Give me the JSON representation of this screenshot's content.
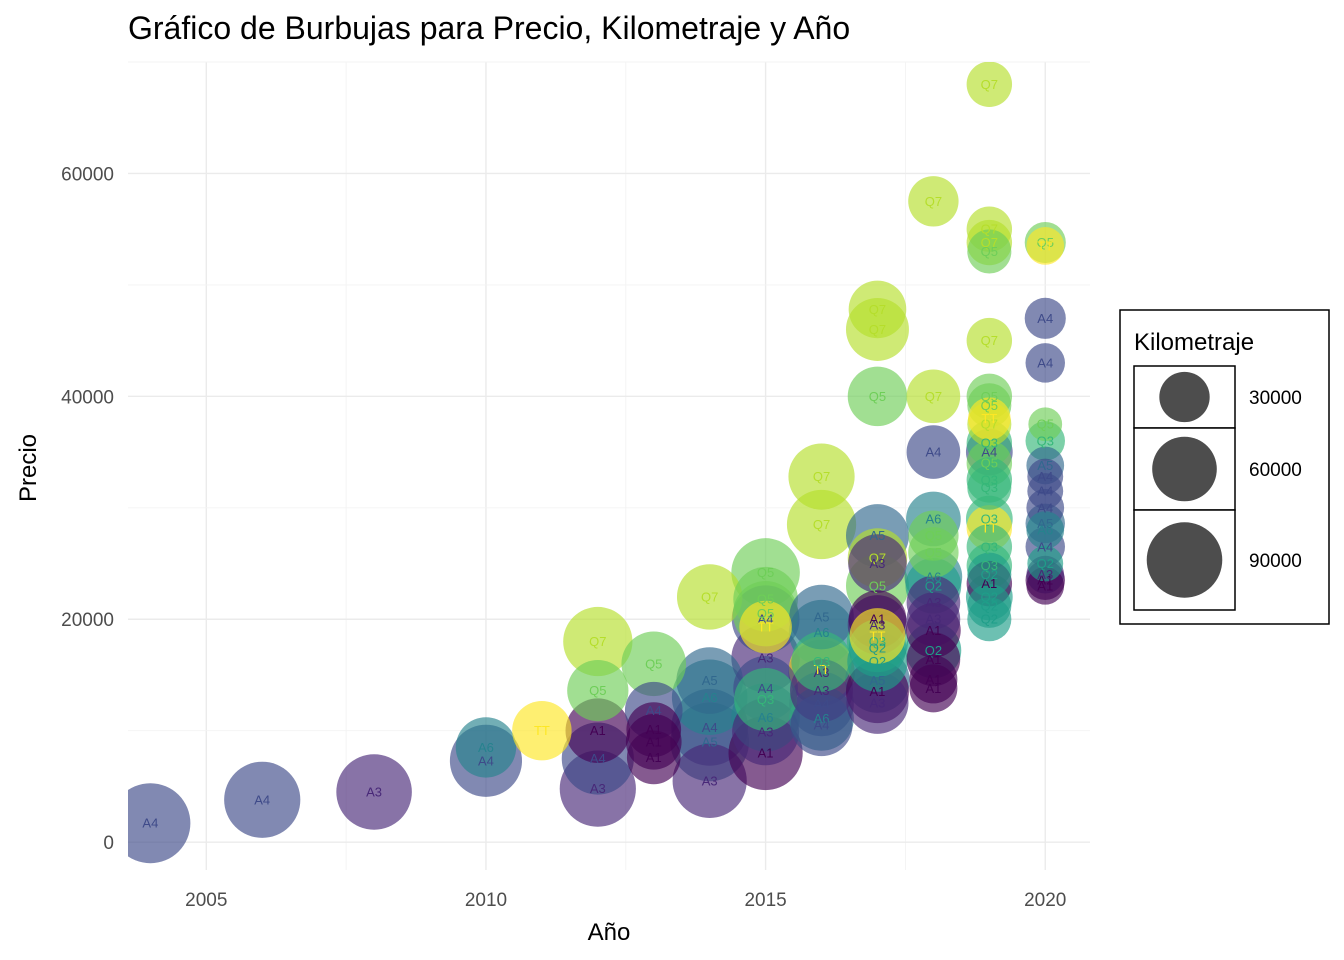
{
  "chart_data": {
    "type": "scatter",
    "subtype": "bubble",
    "title": "Gráfico de Burbujas para Precio, Kilometraje y Año",
    "xlabel": "Año",
    "ylabel": "Precio",
    "xlim": [
      2003.6,
      2020.8
    ],
    "ylim": [
      -2500,
      70000
    ],
    "x_ticks": [
      2005,
      2010,
      2015,
      2020
    ],
    "x_tick_labels": [
      "2005",
      "2010",
      "2015",
      "2020"
    ],
    "y_ticks": [
      0,
      20000,
      40000,
      60000
    ],
    "y_tick_labels": [
      "0",
      "20000",
      "40000",
      "60000"
    ],
    "grid": true,
    "size_variable": "Kilometraje",
    "legend": {
      "title": "Kilometraje",
      "placement": "right",
      "entries": [
        {
          "label": "30000",
          "value": 30000
        },
        {
          "label": "60000",
          "value": 60000
        },
        {
          "label": "90000",
          "value": 90000
        }
      ]
    },
    "model_colors": {
      "A1": "#440154",
      "A3": "#482878",
      "A4": "#3e4a89",
      "A5": "#31688e",
      "A6": "#26828e",
      "Q2": "#1f9e89",
      "Q3": "#35b779",
      "Q5": "#6ece58",
      "Q7": "#b5de2b",
      "TT": "#fde725"
    },
    "points": [
      {
        "x": 2004,
        "y": 1700,
        "km": 104000,
        "model": "A4"
      },
      {
        "x": 2006,
        "y": 3800,
        "km": 92000,
        "model": "A4"
      },
      {
        "x": 2008,
        "y": 4500,
        "km": 90000,
        "model": "A3"
      },
      {
        "x": 2010,
        "y": 7300,
        "km": 80000,
        "model": "A4"
      },
      {
        "x": 2010,
        "y": 8500,
        "km": 50000,
        "model": "A6"
      },
      {
        "x": 2011,
        "y": 10000,
        "km": 48000,
        "model": "TT"
      },
      {
        "x": 2012,
        "y": 18000,
        "km": 72000,
        "model": "Q7"
      },
      {
        "x": 2012,
        "y": 13600,
        "km": 52000,
        "model": "Q5"
      },
      {
        "x": 2012,
        "y": 10000,
        "km": 60000,
        "model": "A1"
      },
      {
        "x": 2012,
        "y": 7500,
        "km": 80000,
        "model": "A4"
      },
      {
        "x": 2012,
        "y": 4800,
        "km": 92000,
        "model": "A3"
      },
      {
        "x": 2013,
        "y": 16000,
        "km": 60000,
        "model": "Q5"
      },
      {
        "x": 2013,
        "y": 11800,
        "km": 44000,
        "model": "A4"
      },
      {
        "x": 2013,
        "y": 10100,
        "km": 38000,
        "model": "A1"
      },
      {
        "x": 2013,
        "y": 9000,
        "km": 40000,
        "model": "A1"
      },
      {
        "x": 2013,
        "y": 7600,
        "km": 36000,
        "model": "A1"
      },
      {
        "x": 2014,
        "y": 22000,
        "km": 62000,
        "model": "Q7"
      },
      {
        "x": 2014,
        "y": 14500,
        "km": 65000,
        "model": "A5"
      },
      {
        "x": 2014,
        "y": 13000,
        "km": 90000,
        "model": "A6"
      },
      {
        "x": 2014,
        "y": 10300,
        "km": 94000,
        "model": "A4"
      },
      {
        "x": 2014,
        "y": 9000,
        "km": 100000,
        "model": "A5"
      },
      {
        "x": 2014,
        "y": 5500,
        "km": 86000,
        "model": "A3"
      },
      {
        "x": 2015,
        "y": 24200,
        "km": 70000,
        "model": "Q5"
      },
      {
        "x": 2015,
        "y": 21800,
        "km": 60000,
        "model": "Q5"
      },
      {
        "x": 2015,
        "y": 20500,
        "km": 62000,
        "model": "Q5"
      },
      {
        "x": 2015,
        "y": 20000,
        "km": 68000,
        "model": "A4"
      },
      {
        "x": 2015,
        "y": 19300,
        "km": 34000,
        "model": "TT"
      },
      {
        "x": 2015,
        "y": 16500,
        "km": 70000,
        "model": "A3"
      },
      {
        "x": 2015,
        "y": 13800,
        "km": 60000,
        "model": "A4"
      },
      {
        "x": 2015,
        "y": 12800,
        "km": 56000,
        "model": "Q3"
      },
      {
        "x": 2015,
        "y": 11200,
        "km": 70000,
        "model": "A6"
      },
      {
        "x": 2015,
        "y": 9900,
        "km": 66000,
        "model": "A3"
      },
      {
        "x": 2015,
        "y": 8000,
        "km": 86000,
        "model": "A1"
      },
      {
        "x": 2016,
        "y": 32800,
        "km": 64000,
        "model": "Q7"
      },
      {
        "x": 2016,
        "y": 28500,
        "km": 72000,
        "model": "Q7"
      },
      {
        "x": 2016,
        "y": 20200,
        "km": 60000,
        "model": "A5"
      },
      {
        "x": 2016,
        "y": 18800,
        "km": 62000,
        "model": "A6"
      },
      {
        "x": 2016,
        "y": 16200,
        "km": 50000,
        "model": "Q3"
      },
      {
        "x": 2016,
        "y": 15500,
        "km": 62000,
        "model": "TT"
      },
      {
        "x": 2016,
        "y": 15200,
        "km": 64000,
        "model": "A3"
      },
      {
        "x": 2016,
        "y": 13600,
        "km": 56000,
        "model": "A3"
      },
      {
        "x": 2016,
        "y": 12400,
        "km": 60000,
        "model": "A4"
      },
      {
        "x": 2016,
        "y": 11100,
        "km": 60000,
        "model": "A6"
      },
      {
        "x": 2016,
        "y": 10500,
        "km": 54000,
        "model": "A4"
      },
      {
        "x": 2017,
        "y": 47800,
        "km": 44000,
        "model": "Q7"
      },
      {
        "x": 2017,
        "y": 46000,
        "km": 56000,
        "model": "Q7"
      },
      {
        "x": 2017,
        "y": 40000,
        "km": 48000,
        "model": "Q5"
      },
      {
        "x": 2017,
        "y": 27500,
        "km": 56000,
        "model": "A5"
      },
      {
        "x": 2017,
        "y": 25500,
        "km": 48000,
        "model": "Q7"
      },
      {
        "x": 2017,
        "y": 25000,
        "km": 46000,
        "model": "A3"
      },
      {
        "x": 2017,
        "y": 23000,
        "km": 56000,
        "model": "Q5"
      },
      {
        "x": 2017,
        "y": 20000,
        "km": 44000,
        "model": "A1"
      },
      {
        "x": 2017,
        "y": 19500,
        "km": 48000,
        "model": "A3"
      },
      {
        "x": 2017,
        "y": 18500,
        "km": 40000,
        "model": "TT"
      },
      {
        "x": 2017,
        "y": 18000,
        "km": 52000,
        "model": "Q3"
      },
      {
        "x": 2017,
        "y": 17400,
        "km": 44000,
        "model": "Q2"
      },
      {
        "x": 2017,
        "y": 16200,
        "km": 50000,
        "model": "Q2"
      },
      {
        "x": 2017,
        "y": 14500,
        "km": 60000,
        "model": "A5"
      },
      {
        "x": 2017,
        "y": 13500,
        "km": 56000,
        "model": "A1"
      },
      {
        "x": 2017,
        "y": 12500,
        "km": 54000,
        "model": "A3"
      },
      {
        "x": 2018,
        "y": 57500,
        "km": 30000,
        "model": "Q7"
      },
      {
        "x": 2018,
        "y": 40000,
        "km": 36000,
        "model": "Q7"
      },
      {
        "x": 2018,
        "y": 35000,
        "km": 36000,
        "model": "A4"
      },
      {
        "x": 2018,
        "y": 29000,
        "km": 38000,
        "model": "A6"
      },
      {
        "x": 2018,
        "y": 27500,
        "km": 30000,
        "model": "Q5"
      },
      {
        "x": 2018,
        "y": 26000,
        "km": 30000,
        "model": "Q5"
      },
      {
        "x": 2018,
        "y": 23800,
        "km": 44000,
        "model": "A6"
      },
      {
        "x": 2018,
        "y": 23000,
        "km": 40000,
        "model": "Q2"
      },
      {
        "x": 2018,
        "y": 21500,
        "km": 36000,
        "model": "A3"
      },
      {
        "x": 2018,
        "y": 20000,
        "km": 36000,
        "model": "A3"
      },
      {
        "x": 2018,
        "y": 19000,
        "km": 38000,
        "model": "A1"
      },
      {
        "x": 2018,
        "y": 17200,
        "km": 40000,
        "model": "Q2"
      },
      {
        "x": 2018,
        "y": 16400,
        "km": 36000,
        "model": "A1"
      },
      {
        "x": 2018,
        "y": 14600,
        "km": 26000,
        "model": "A1"
      },
      {
        "x": 2018,
        "y": 13800,
        "km": 26000,
        "model": "A1"
      },
      {
        "x": 2019,
        "y": 68000,
        "km": 22000,
        "model": "Q7"
      },
      {
        "x": 2019,
        "y": 55000,
        "km": 22000,
        "model": "Q7"
      },
      {
        "x": 2019,
        "y": 53800,
        "km": 22000,
        "model": "Q7"
      },
      {
        "x": 2019,
        "y": 53000,
        "km": 20000,
        "model": "Q5"
      },
      {
        "x": 2019,
        "y": 45000,
        "km": 22000,
        "model": "Q7"
      },
      {
        "x": 2019,
        "y": 40000,
        "km": 22000,
        "model": "Q5"
      },
      {
        "x": 2019,
        "y": 39200,
        "km": 20000,
        "model": "Q5"
      },
      {
        "x": 2019,
        "y": 38000,
        "km": 18000,
        "model": "TT"
      },
      {
        "x": 2019,
        "y": 37500,
        "km": 20000,
        "model": "Q7"
      },
      {
        "x": 2019,
        "y": 35800,
        "km": 22000,
        "model": "Q3"
      },
      {
        "x": 2019,
        "y": 35000,
        "km": 24000,
        "model": "A4"
      },
      {
        "x": 2019,
        "y": 34000,
        "km": 22000,
        "model": "Q5"
      },
      {
        "x": 2019,
        "y": 32500,
        "km": 22000,
        "model": "Q3"
      },
      {
        "x": 2019,
        "y": 31800,
        "km": 20000,
        "model": "Q3"
      },
      {
        "x": 2019,
        "y": 29000,
        "km": 24000,
        "model": "Q3"
      },
      {
        "x": 2019,
        "y": 28200,
        "km": 22000,
        "model": "TT"
      },
      {
        "x": 2019,
        "y": 26500,
        "km": 22000,
        "model": "Q3"
      },
      {
        "x": 2019,
        "y": 24800,
        "km": 22000,
        "model": "Q3"
      },
      {
        "x": 2019,
        "y": 24000,
        "km": 20000,
        "model": "Q2"
      },
      {
        "x": 2019,
        "y": 23200,
        "km": 22000,
        "model": "A1"
      },
      {
        "x": 2019,
        "y": 22000,
        "km": 24000,
        "model": "Q2"
      },
      {
        "x": 2019,
        "y": 21200,
        "km": 20000,
        "model": "Q2"
      },
      {
        "x": 2019,
        "y": 20000,
        "km": 20000,
        "model": "Q2"
      },
      {
        "x": 2020,
        "y": 53800,
        "km": 16000,
        "model": "Q5"
      },
      {
        "x": 2020,
        "y": 53500,
        "km": 12000,
        "model": "TT"
      },
      {
        "x": 2020,
        "y": 47000,
        "km": 16000,
        "model": "A4"
      },
      {
        "x": 2020,
        "y": 43000,
        "km": 14000,
        "model": "A4"
      },
      {
        "x": 2020,
        "y": 37500,
        "km": 8000,
        "model": "Q5"
      },
      {
        "x": 2020,
        "y": 36000,
        "km": 14000,
        "model": "Q3"
      },
      {
        "x": 2020,
        "y": 33800,
        "km": 12000,
        "model": "A5"
      },
      {
        "x": 2020,
        "y": 32800,
        "km": 10000,
        "model": "A4"
      },
      {
        "x": 2020,
        "y": 31500,
        "km": 10000,
        "model": "A4"
      },
      {
        "x": 2020,
        "y": 30000,
        "km": 12000,
        "model": "A4"
      },
      {
        "x": 2020,
        "y": 28600,
        "km": 14000,
        "model": "A5"
      },
      {
        "x": 2020,
        "y": 28000,
        "km": 12000,
        "model": "A6"
      },
      {
        "x": 2020,
        "y": 26500,
        "km": 14000,
        "model": "A4"
      },
      {
        "x": 2020,
        "y": 25000,
        "km": 10000,
        "model": "Q2"
      },
      {
        "x": 2020,
        "y": 24000,
        "km": 12000,
        "model": "A3"
      },
      {
        "x": 2020,
        "y": 23500,
        "km": 14000,
        "model": "A1"
      },
      {
        "x": 2020,
        "y": 23000,
        "km": 12000,
        "model": "A1"
      }
    ]
  }
}
